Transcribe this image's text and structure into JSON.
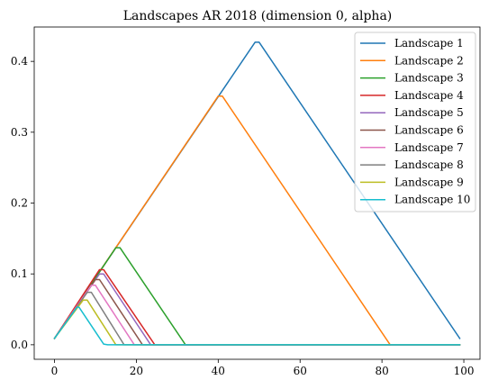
{
  "chart_data": {
    "type": "line",
    "title": "Landscapes AR 2018 (dimension 0, alpha)",
    "xlabel": "",
    "ylabel": "",
    "xlim": [
      -4.95,
      103.95
    ],
    "ylim": [
      -0.0205,
      0.4485
    ],
    "xticks": [
      0,
      20,
      40,
      60,
      80,
      100
    ],
    "yticks": [
      0.0,
      0.1,
      0.2,
      0.3,
      0.4
    ],
    "xtick_labels": [
      "0",
      "20",
      "40",
      "60",
      "80",
      "100"
    ],
    "ytick_labels": [
      "0.0",
      "0.1",
      "0.2",
      "0.3",
      "0.4"
    ],
    "grid": false,
    "legend_position": "upper right",
    "series": [
      {
        "name": "Landscape 1",
        "color": "#1f77b4",
        "points": [
          [
            0,
            0.009
          ],
          [
            49,
            0.427
          ],
          [
            50,
            0.427
          ],
          [
            99,
            0.009
          ]
        ]
      },
      {
        "name": "Landscape 2",
        "color": "#ff7f0e",
        "points": [
          [
            0,
            0.009
          ],
          [
            40,
            0.351
          ],
          [
            41,
            0.351
          ],
          [
            82,
            0.0
          ]
        ]
      },
      {
        "name": "Landscape 3",
        "color": "#2ca02c",
        "points": [
          [
            0,
            0.009
          ],
          [
            15,
            0.137
          ],
          [
            16,
            0.137
          ],
          [
            32,
            0.0
          ],
          [
            99,
            0.0
          ]
        ]
      },
      {
        "name": "Landscape 4",
        "color": "#d62728",
        "points": [
          [
            0,
            0.009
          ],
          [
            11,
            0.106
          ],
          [
            12,
            0.106
          ],
          [
            24.5,
            0.0
          ],
          [
            99,
            0.0
          ]
        ]
      },
      {
        "name": "Landscape 5",
        "color": "#9467bd",
        "points": [
          [
            0,
            0.009
          ],
          [
            11,
            0.1
          ],
          [
            12,
            0.1
          ],
          [
            23.5,
            0.0
          ],
          [
            99,
            0.0
          ]
        ]
      },
      {
        "name": "Landscape 6",
        "color": "#8c564b",
        "points": [
          [
            0,
            0.009
          ],
          [
            10,
            0.092
          ],
          [
            11,
            0.092
          ],
          [
            21.5,
            0.0
          ],
          [
            99,
            0.0
          ]
        ]
      },
      {
        "name": "Landscape 7",
        "color": "#e377c2",
        "points": [
          [
            0,
            0.009
          ],
          [
            9,
            0.084
          ],
          [
            10,
            0.084
          ],
          [
            19.5,
            0.0
          ],
          [
            99,
            0.0
          ]
        ]
      },
      {
        "name": "Landscape 8",
        "color": "#7f7f7f",
        "points": [
          [
            0,
            0.009
          ],
          [
            8,
            0.074
          ],
          [
            9,
            0.074
          ],
          [
            17,
            0.0
          ],
          [
            99,
            0.0
          ]
        ]
      },
      {
        "name": "Landscape 9",
        "color": "#bcbd22",
        "points": [
          [
            0,
            0.009
          ],
          [
            7,
            0.063
          ],
          [
            8,
            0.063
          ],
          [
            15,
            0.0
          ],
          [
            99,
            0.0
          ]
        ]
      },
      {
        "name": "Landscape 10",
        "color": "#17becf",
        "points": [
          [
            0,
            0.009
          ],
          [
            5.5,
            0.053
          ],
          [
            6,
            0.053
          ],
          [
            12,
            0.001
          ],
          [
            13,
            0.0
          ],
          [
            99,
            0.0
          ]
        ]
      }
    ]
  }
}
